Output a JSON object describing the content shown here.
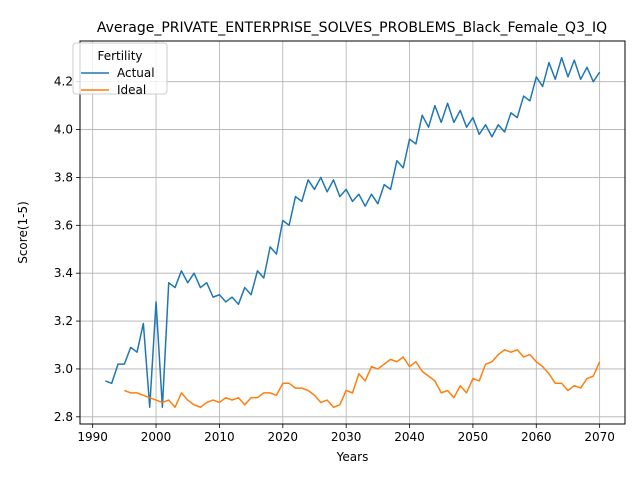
{
  "chart_data": {
    "type": "line",
    "title": "Average_PRIVATE_ENTERPRISE_SOLVES_PROBLEMS_Black_Female_Q3_IQ",
    "xlabel": "Years",
    "ylabel": "Score(1-5)",
    "xlim": [
      1988,
      2074
    ],
    "ylim": [
      2.77,
      4.37
    ],
    "xticks": [
      1990,
      2000,
      2010,
      2020,
      2030,
      2040,
      2050,
      2060,
      2070
    ],
    "yticks": [
      2.8,
      3.0,
      3.2,
      3.4,
      3.6,
      3.8,
      4.0,
      4.2
    ],
    "grid": true,
    "legend": {
      "title": "Fertility",
      "placement": "upper left"
    },
    "series": [
      {
        "name": "Actual",
        "color": "#1f77b4",
        "x": [
          1992,
          1993,
          1994,
          1995,
          1996,
          1997,
          1998,
          1999,
          2000,
          2001,
          2002,
          2003,
          2004,
          2005,
          2006,
          2007,
          2008,
          2009,
          2010,
          2011,
          2012,
          2013,
          2014,
          2015,
          2016,
          2017,
          2018,
          2019,
          2020,
          2021,
          2022,
          2023,
          2024,
          2025,
          2026,
          2027,
          2028,
          2029,
          2030,
          2031,
          2032,
          2033,
          2034,
          2035,
          2036,
          2037,
          2038,
          2039,
          2040,
          2041,
          2042,
          2043,
          2044,
          2045,
          2046,
          2047,
          2048,
          2049,
          2050,
          2051,
          2052,
          2053,
          2054,
          2055,
          2056,
          2057,
          2058,
          2059,
          2060,
          2061,
          2062,
          2063,
          2064,
          2065,
          2066,
          2067,
          2068,
          2069,
          2070
        ],
        "values": [
          2.95,
          2.94,
          3.02,
          3.02,
          3.09,
          3.07,
          3.19,
          2.84,
          3.28,
          2.84,
          3.36,
          3.34,
          3.41,
          3.36,
          3.4,
          3.34,
          3.36,
          3.3,
          3.31,
          3.28,
          3.3,
          3.27,
          3.34,
          3.31,
          3.41,
          3.38,
          3.51,
          3.48,
          3.62,
          3.6,
          3.72,
          3.7,
          3.79,
          3.75,
          3.8,
          3.74,
          3.79,
          3.72,
          3.75,
          3.7,
          3.73,
          3.68,
          3.73,
          3.69,
          3.77,
          3.75,
          3.87,
          3.84,
          3.96,
          3.94,
          4.06,
          4.01,
          4.1,
          4.03,
          4.11,
          4.03,
          4.08,
          4.01,
          4.05,
          3.98,
          4.02,
          3.97,
          4.02,
          3.99,
          4.07,
          4.05,
          4.14,
          4.12,
          4.22,
          4.18,
          4.28,
          4.21,
          4.3,
          4.22,
          4.29,
          4.21,
          4.26,
          4.2,
          4.24
        ]
      },
      {
        "name": "Ideal",
        "color": "#ff7f0e",
        "x": [
          1995,
          1996,
          1997,
          1998,
          1999,
          2000,
          2001,
          2002,
          2003,
          2004,
          2005,
          2006,
          2007,
          2008,
          2009,
          2010,
          2011,
          2012,
          2013,
          2014,
          2015,
          2016,
          2017,
          2018,
          2019,
          2020,
          2021,
          2022,
          2023,
          2024,
          2025,
          2026,
          2027,
          2028,
          2029,
          2030,
          2031,
          2032,
          2033,
          2034,
          2035,
          2036,
          2037,
          2038,
          2039,
          2040,
          2041,
          2042,
          2043,
          2044,
          2045,
          2046,
          2047,
          2048,
          2049,
          2050,
          2051,
          2052,
          2053,
          2054,
          2055,
          2056,
          2057,
          2058,
          2059,
          2060,
          2061,
          2062,
          2063,
          2064,
          2065,
          2066,
          2067,
          2068,
          2069,
          2070
        ],
        "values": [
          2.91,
          2.9,
          2.9,
          2.89,
          2.88,
          2.87,
          2.86,
          2.87,
          2.84,
          2.9,
          2.87,
          2.85,
          2.84,
          2.86,
          2.87,
          2.86,
          2.88,
          2.87,
          2.88,
          2.85,
          2.88,
          2.88,
          2.9,
          2.9,
          2.89,
          2.94,
          2.94,
          2.92,
          2.92,
          2.91,
          2.89,
          2.86,
          2.87,
          2.84,
          2.85,
          2.91,
          2.9,
          2.98,
          2.95,
          3.01,
          3.0,
          3.02,
          3.04,
          3.03,
          3.05,
          3.01,
          3.03,
          2.99,
          2.97,
          2.95,
          2.9,
          2.91,
          2.88,
          2.93,
          2.9,
          2.96,
          2.95,
          3.02,
          3.03,
          3.06,
          3.08,
          3.07,
          3.08,
          3.05,
          3.06,
          3.03,
          3.01,
          2.98,
          2.94,
          2.94,
          2.91,
          2.93,
          2.92,
          2.96,
          2.97,
          3.03
        ]
      }
    ]
  }
}
